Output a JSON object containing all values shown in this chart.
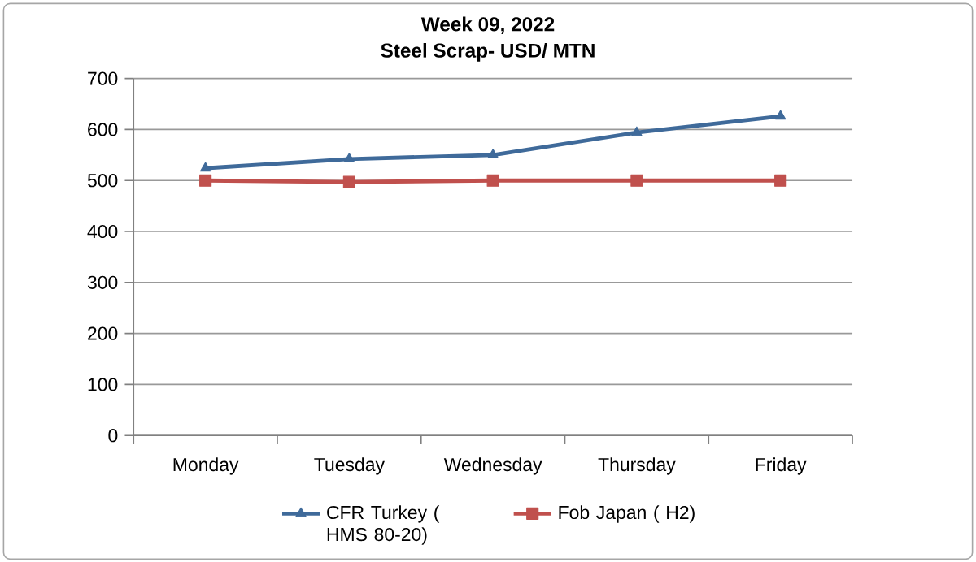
{
  "chart_data": {
    "type": "line",
    "title": "Week 09, 2022",
    "subtitle": "Steel Scrap- USD/ MTN",
    "categories": [
      "Monday",
      "Tuesday",
      "Wednesday",
      "Thursday",
      "Friday"
    ],
    "series": [
      {
        "name": "CFR Turkey ( HMS 80-20)",
        "color": "#3f6a9a",
        "marker": "triangle",
        "values": [
          524,
          542,
          550,
          594,
          626
        ]
      },
      {
        "name": "Fob Japan ( H2)",
        "color": "#c0504d",
        "marker": "square",
        "values": [
          500,
          497,
          500,
          500,
          500
        ]
      }
    ],
    "ylim": [
      0,
      700
    ],
    "yticks": [
      0,
      100,
      200,
      300,
      400,
      500,
      600,
      700
    ],
    "grid": "y",
    "legend": "bottom"
  }
}
